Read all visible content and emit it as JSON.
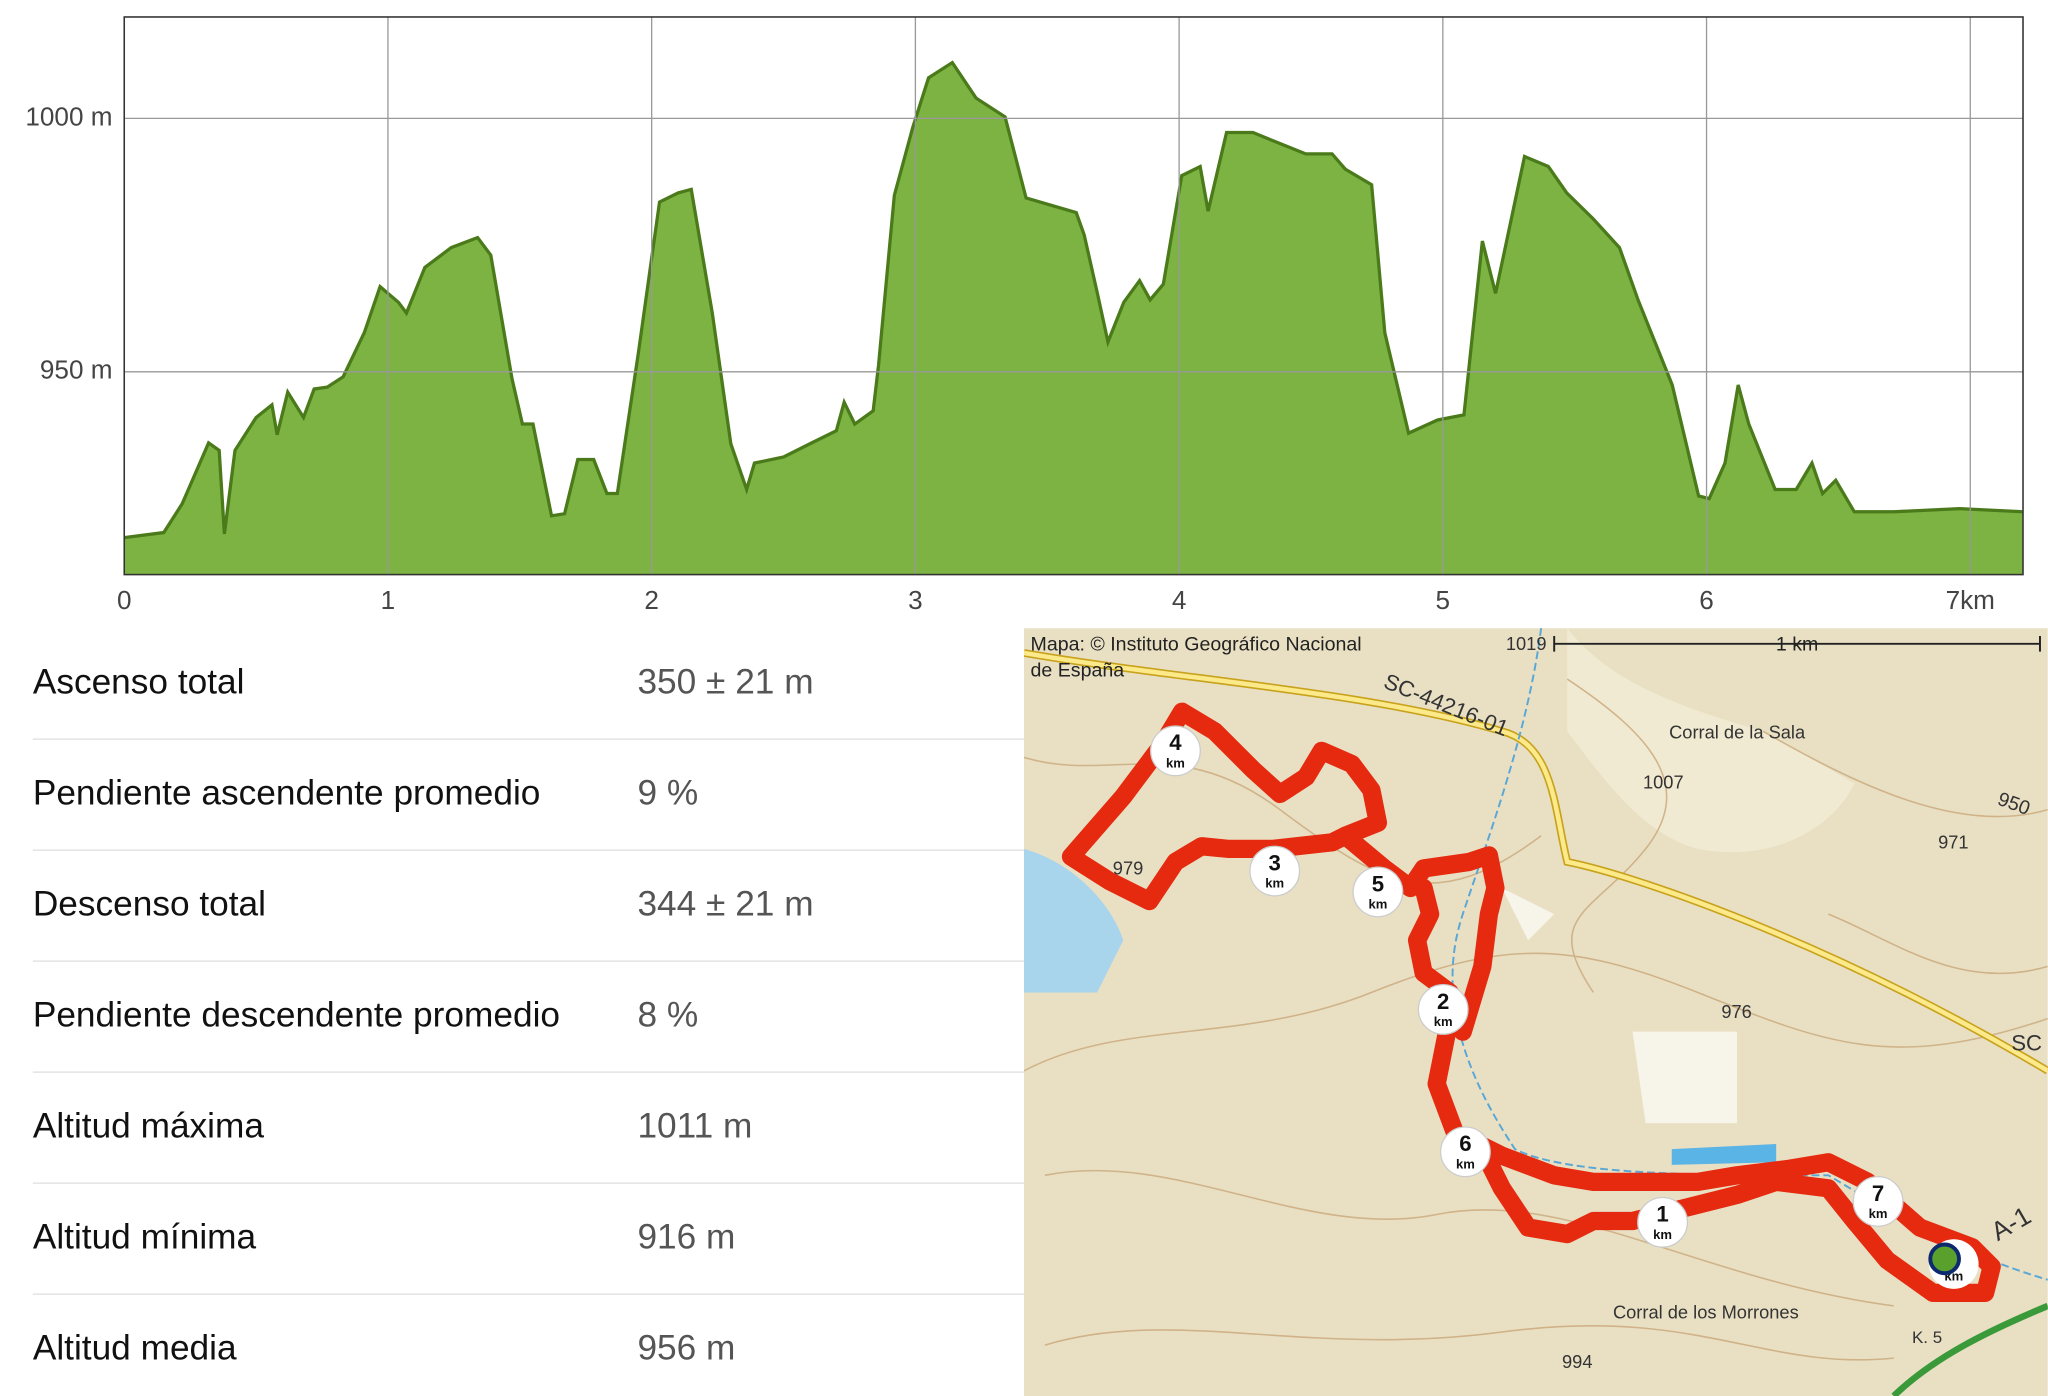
{
  "chart_data": {
    "type": "area",
    "x": [
      0,
      0.15,
      0.22,
      0.32,
      0.36,
      0.38,
      0.42,
      0.5,
      0.56,
      0.58,
      0.62,
      0.68,
      0.72,
      0.77,
      0.83,
      0.91,
      0.97,
      1.04,
      1.07,
      1.14,
      1.24,
      1.34,
      1.39,
      1.47,
      1.51,
      1.55,
      1.62,
      1.67,
      1.72,
      1.78,
      1.83,
      1.87,
      1.95,
      2.03,
      2.1,
      2.15,
      2.23,
      2.3,
      2.36,
      2.39,
      2.5,
      2.6,
      2.7,
      2.73,
      2.77,
      2.84,
      2.86,
      2.92,
      2.99,
      3.05,
      3.14,
      3.23,
      3.34,
      3.42,
      3.61,
      3.64,
      3.69,
      3.73,
      3.79,
      3.85,
      3.89,
      3.94,
      4.01,
      4.08,
      4.11,
      4.18,
      4.28,
      4.38,
      4.48,
      4.58,
      4.63,
      4.73,
      4.78,
      4.87,
      4.98,
      5.08,
      5.15,
      5.2,
      5.31,
      5.4,
      5.47,
      5.57,
      5.67,
      5.74,
      5.87,
      5.97,
      6.01,
      6.07,
      6.12,
      6.16,
      6.26,
      6.34,
      6.4,
      6.44,
      6.49,
      6.56,
      6.71,
      6.96,
      7.2
    ],
    "values": [
      917.3,
      918.3,
      924,
      936,
      934.5,
      918,
      934.5,
      941,
      943.5,
      937.6,
      946,
      941,
      946.6,
      947,
      949,
      957.7,
      966.8,
      963.7,
      961.6,
      970.6,
      974.5,
      976.5,
      973,
      948.7,
      939.7,
      939.7,
      921.6,
      922,
      932.7,
      932.7,
      926,
      926,
      953.9,
      983.5,
      985.3,
      986,
      961.6,
      935.8,
      926.8,
      932,
      933.2,
      935.8,
      938.4,
      944,
      939.7,
      942.3,
      951.3,
      984.8,
      998.2,
      1008,
      1011,
      1004,
      1000.3,
      984.3,
      981.4,
      977,
      965.5,
      955.9,
      963.7,
      968,
      964.2,
      967.3,
      988.7,
      990.5,
      981.7,
      997.2,
      997.2,
      995.1,
      993,
      993,
      990,
      986.9,
      957.7,
      937.9,
      940.5,
      941.5,
      975.8,
      965.5,
      992.5,
      990.5,
      985.3,
      980.2,
      974.5,
      964.2,
      947.4,
      925.5,
      925,
      932,
      947.4,
      939.7,
      926.8,
      926.8,
      932,
      926,
      928.6,
      922.4,
      922.4,
      923,
      922.4
    ],
    "color": "#7cb342",
    "line_color": "#4a7a1a",
    "xlim": [
      0,
      7.2
    ],
    "ylim": [
      910,
      1020
    ],
    "xticks": [
      0,
      1,
      2,
      3,
      4,
      5,
      6,
      {
        "value": 7,
        "label": "7km"
      }
    ],
    "yticks": [
      {
        "value": 950,
        "label": "950 m"
      },
      {
        "value": 1000,
        "label": "1000 m"
      }
    ],
    "grid": true
  },
  "stats": {
    "rows": [
      [
        "Ascenso total",
        "350 ± 21 m"
      ],
      [
        "Pendiente ascendente promedio",
        "9 %"
      ],
      [
        "Descenso total",
        "344 ± 21 m"
      ],
      [
        "Pendiente descendente promedio",
        "8 %"
      ],
      [
        "Altitud máxima",
        "1011 m"
      ],
      [
        "Altitud mínima",
        "916 m"
      ],
      [
        "Altitud media",
        "956 m"
      ]
    ]
  },
  "map": {
    "attribution": [
      "Mapa: © Instituto Geográfico Nacional",
      "de España"
    ],
    "scale": "1 km",
    "labels": [
      "1019",
      "SC-44216-01",
      "Corral de la Sala",
      "1007",
      "950",
      "971",
      "976",
      "979",
      "Corral de los Morrones",
      "994",
      "K. 5",
      "SC",
      "A-1"
    ],
    "markers": [
      {
        "label": "1",
        "unit": "km"
      },
      {
        "label": "2",
        "unit": "km"
      },
      {
        "label": "3",
        "unit": "km"
      },
      {
        "label": "4",
        "unit": "km"
      },
      {
        "label": "5",
        "unit": "km"
      },
      {
        "label": "6",
        "unit": "km"
      },
      {
        "label": "7",
        "unit": "km"
      }
    ],
    "end_unit": "km"
  }
}
